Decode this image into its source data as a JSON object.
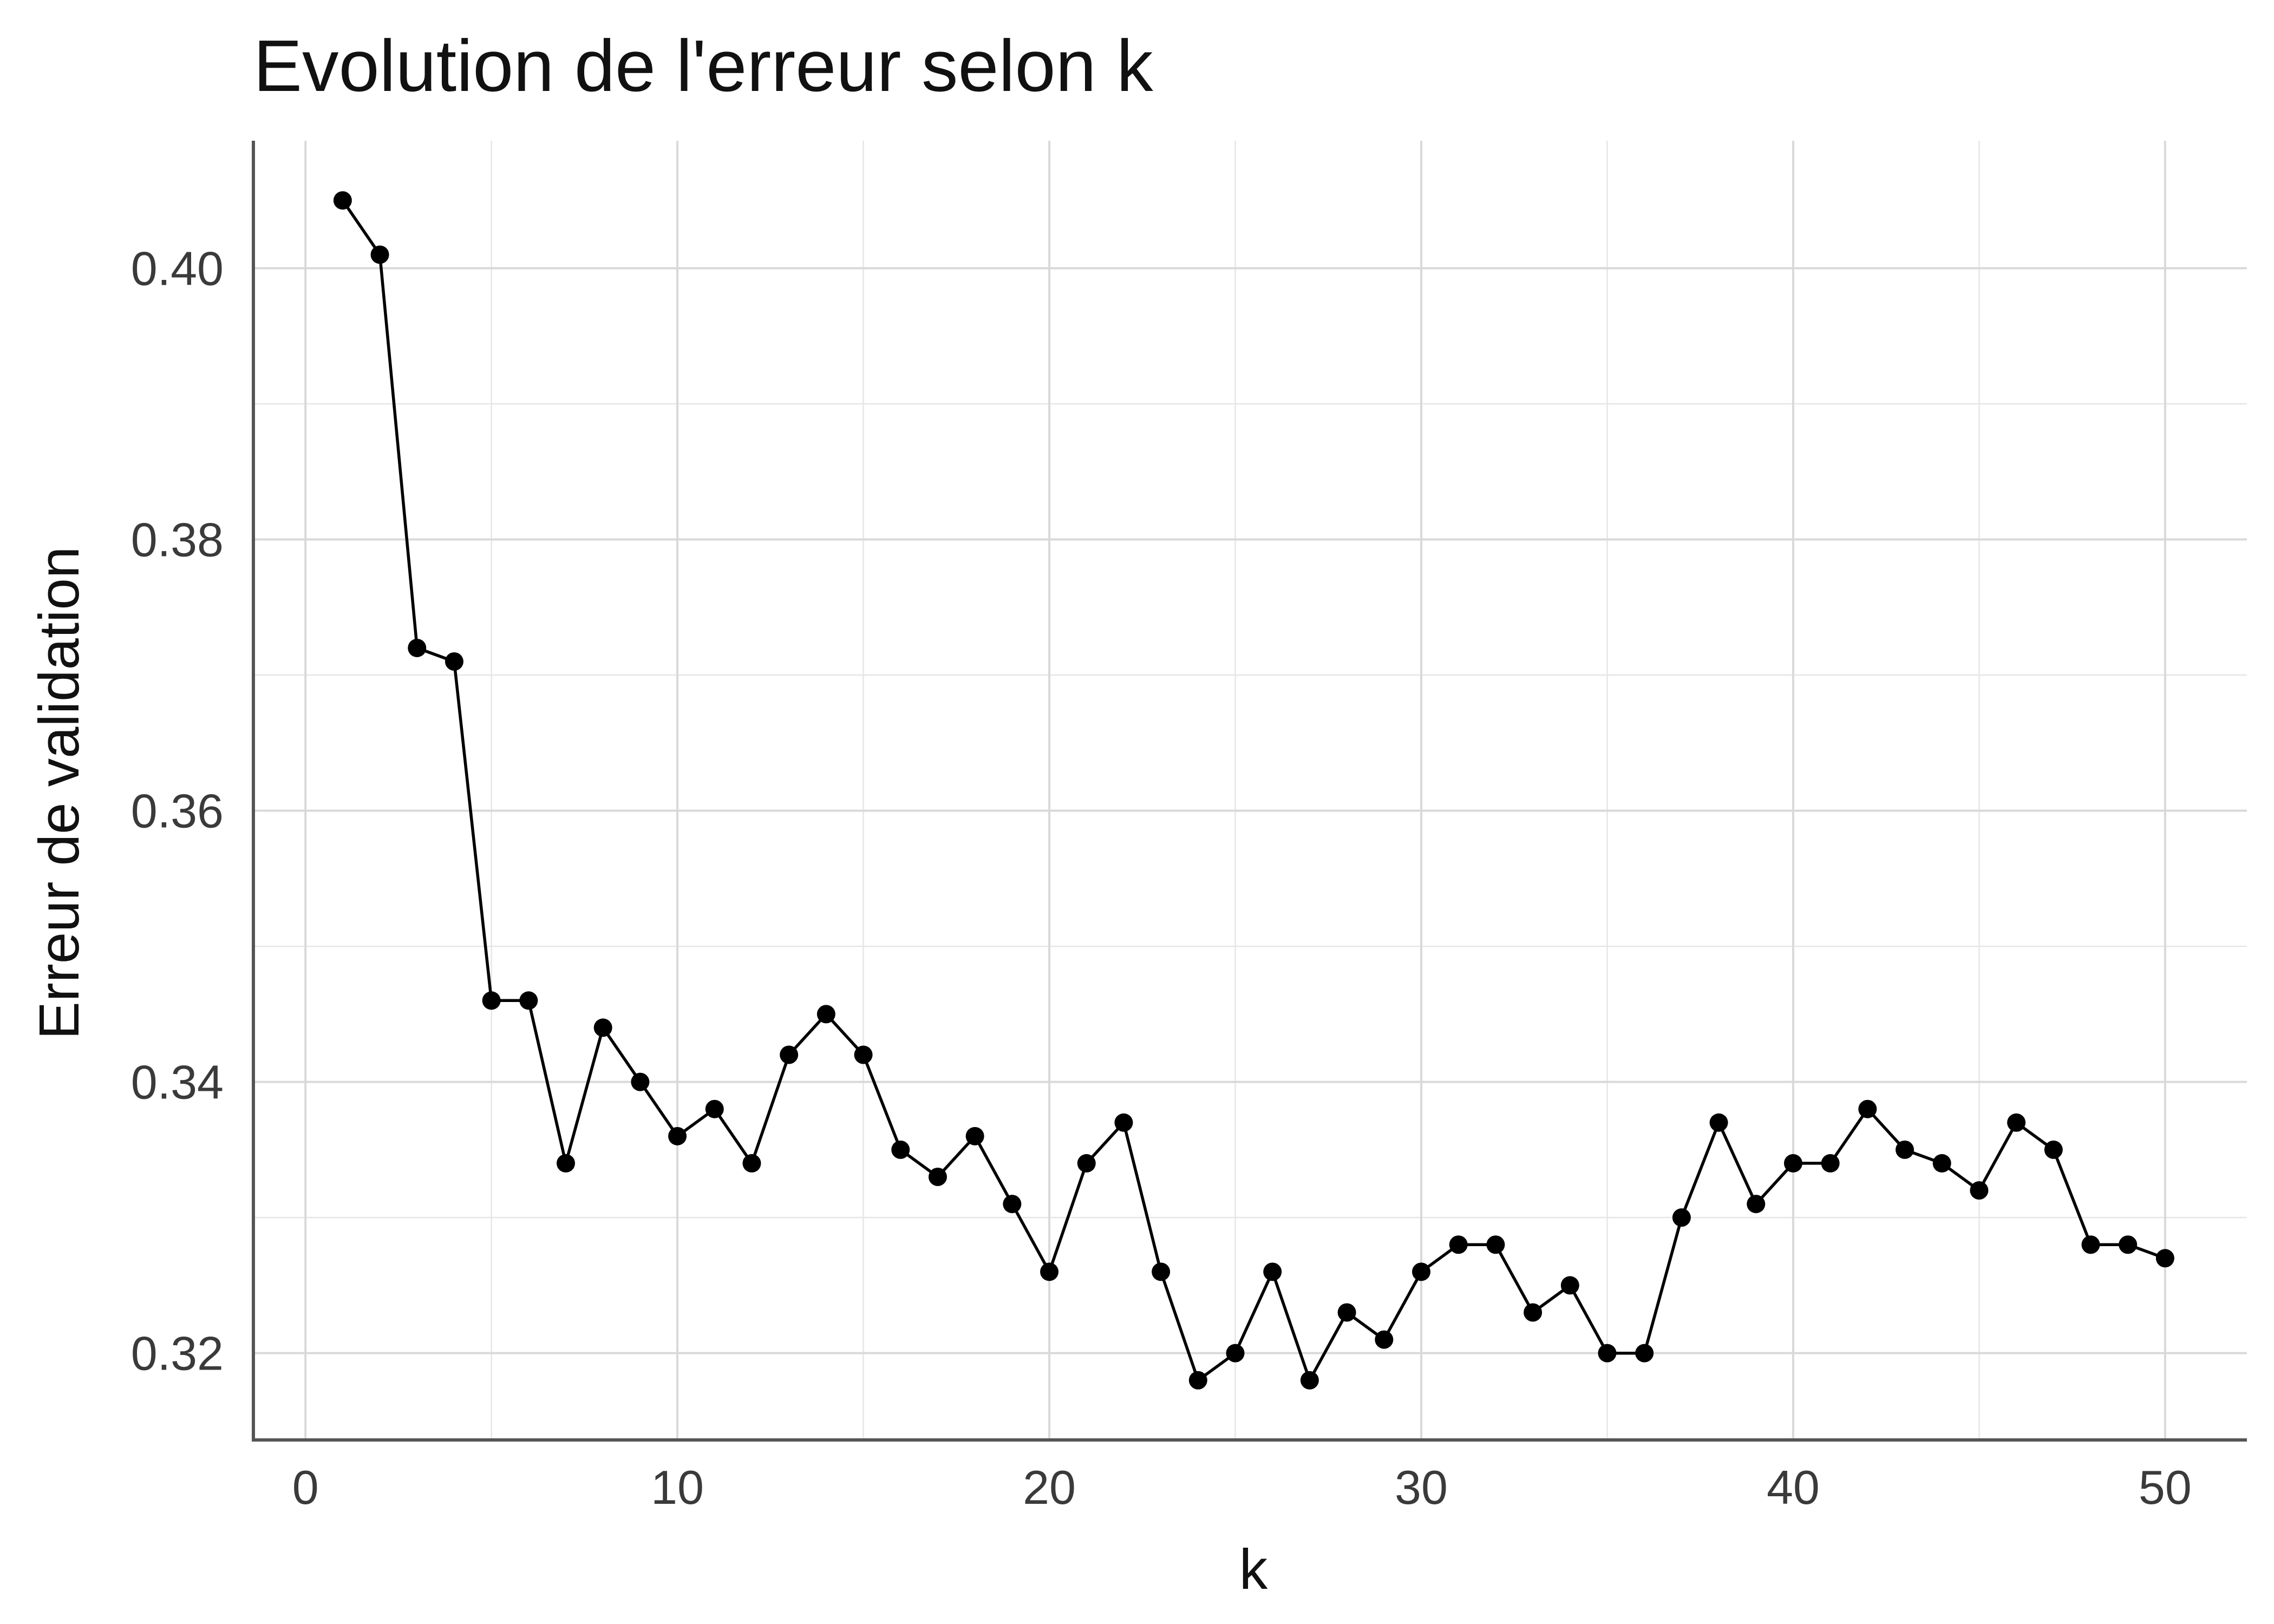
{
  "chart_data": {
    "type": "line",
    "title": "Evolution de l'erreur selon k",
    "xlabel": "k",
    "ylabel": "Erreur de validation",
    "xlim": [
      -1.4,
      52.2
    ],
    "ylim": [
      0.3136,
      0.4094
    ],
    "xticks": [
      0,
      10,
      20,
      30,
      40,
      50
    ],
    "xtick_labels": [
      "0",
      "10",
      "20",
      "30",
      "40",
      "50"
    ],
    "yticks": [
      0.32,
      0.34,
      0.36,
      0.38,
      0.4
    ],
    "ytick_labels": [
      "0.32",
      "0.34",
      "0.36",
      "0.38",
      "0.40"
    ],
    "grid": true,
    "colors": {
      "line": "#000000",
      "point": "#000000",
      "grid": "#d9d9d9",
      "axis": "#555555"
    },
    "series": [
      {
        "x": [
          1,
          2,
          3,
          4,
          5,
          6,
          7,
          8,
          9,
          10,
          11,
          12,
          13,
          14,
          15,
          16,
          17,
          18,
          19,
          20,
          21,
          22,
          23,
          24,
          25,
          26,
          27,
          28,
          29,
          30,
          31,
          32,
          33,
          34,
          35,
          36,
          37,
          38,
          39,
          40,
          41,
          42,
          43,
          44,
          45,
          46,
          47,
          48,
          49,
          50
        ],
        "values": [
          0.405,
          0.401,
          0.372,
          0.371,
          0.346,
          0.346,
          0.334,
          0.344,
          0.34,
          0.336,
          0.338,
          0.334,
          0.342,
          0.345,
          0.342,
          0.335,
          0.333,
          0.336,
          0.331,
          0.326,
          0.334,
          0.337,
          0.326,
          0.318,
          0.32,
          0.326,
          0.318,
          0.323,
          0.321,
          0.326,
          0.328,
          0.328,
          0.323,
          0.325,
          0.32,
          0.32,
          0.33,
          0.337,
          0.331,
          0.334,
          0.334,
          0.338,
          0.335,
          0.334,
          0.332,
          0.337,
          0.335,
          0.328,
          0.328,
          0.327
        ]
      }
    ]
  }
}
